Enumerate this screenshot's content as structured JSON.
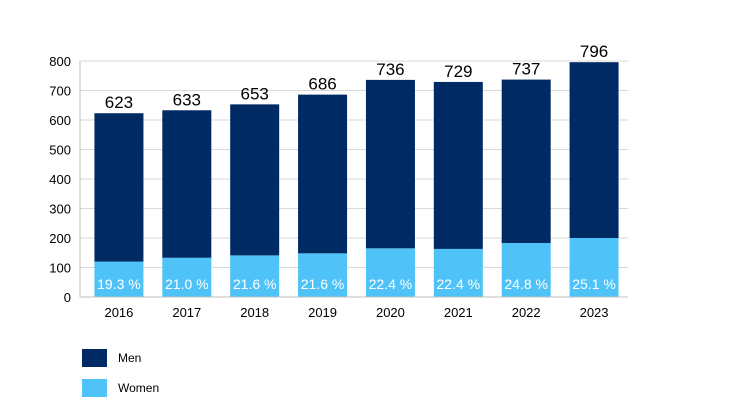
{
  "chart_data": {
    "type": "bar",
    "stacked": true,
    "categories": [
      "2016",
      "2017",
      "2018",
      "2019",
      "2020",
      "2021",
      "2022",
      "2023"
    ],
    "totals": [
      623,
      633,
      653,
      686,
      736,
      729,
      737,
      796
    ],
    "women_share_labels": [
      "19.3 %",
      "21.0 %",
      "21.6 %",
      "21.6 %",
      "22.4 %",
      "22.4 %",
      "24.8 %",
      "25.1 %"
    ],
    "series": [
      {
        "name": "Women",
        "color": "#4fc3f7",
        "values": [
          120,
          133,
          141,
          148,
          165,
          163,
          183,
          200
        ]
      },
      {
        "name": "Men",
        "color": "#002a63",
        "values": [
          503,
          500,
          512,
          538,
          571,
          566,
          554,
          596
        ]
      }
    ],
    "ylim": [
      0,
      800
    ],
    "yticks": [
      0,
      100,
      200,
      300,
      400,
      500,
      600,
      700,
      800
    ],
    "grid": true,
    "legend_position": "bottom-left"
  },
  "legend": {
    "items": [
      {
        "label": "Men",
        "color": "#002a63"
      },
      {
        "label": "Women",
        "color": "#4fc3f7"
      }
    ]
  }
}
